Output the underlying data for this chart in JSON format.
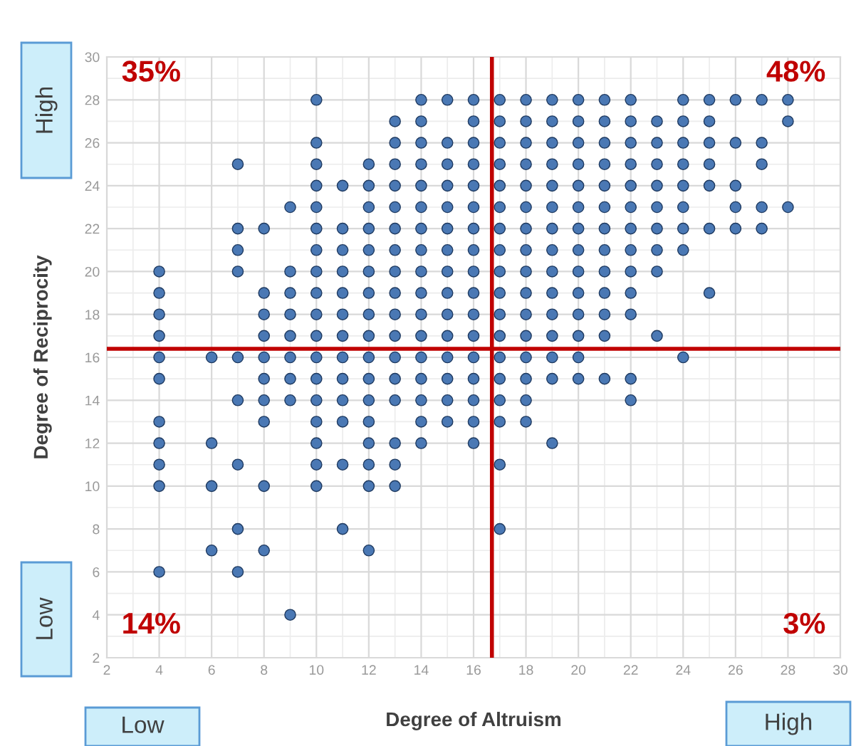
{
  "chart_data": {
    "type": "scatter",
    "xlabel": "Degree of Altruism",
    "ylabel": "Degree of Reciprocity",
    "x": [
      10,
      14,
      15,
      16,
      17,
      18,
      19,
      20,
      21,
      22,
      24,
      25,
      26,
      27,
      28,
      13,
      14,
      16,
      17,
      18,
      19,
      20,
      21,
      22,
      23,
      24,
      25,
      28,
      10,
      13,
      14,
      15,
      16,
      17,
      18,
      19,
      20,
      21,
      22,
      23,
      24,
      25,
      26,
      27,
      7,
      10,
      12,
      13,
      14,
      15,
      16,
      17,
      18,
      19,
      20,
      21,
      22,
      23,
      24,
      25,
      27,
      10,
      11,
      12,
      13,
      14,
      15,
      16,
      17,
      18,
      19,
      20,
      21,
      22,
      23,
      24,
      25,
      26,
      9,
      10,
      12,
      13,
      14,
      15,
      16,
      17,
      18,
      19,
      20,
      21,
      22,
      23,
      24,
      26,
      27,
      28,
      7,
      8,
      10,
      11,
      12,
      13,
      14,
      15,
      16,
      17,
      18,
      19,
      20,
      21,
      22,
      23,
      24,
      25,
      26,
      27,
      7,
      10,
      11,
      12,
      13,
      14,
      15,
      16,
      17,
      18,
      19,
      20,
      21,
      22,
      23,
      24,
      4,
      7,
      9,
      10,
      11,
      12,
      13,
      14,
      15,
      16,
      17,
      18,
      19,
      20,
      21,
      22,
      23,
      4,
      8,
      9,
      10,
      11,
      12,
      13,
      14,
      15,
      16,
      17,
      18,
      19,
      20,
      21,
      22,
      25,
      4,
      8,
      9,
      10,
      11,
      12,
      13,
      14,
      15,
      16,
      17,
      18,
      19,
      20,
      21,
      22,
      4,
      8,
      9,
      10,
      11,
      12,
      13,
      14,
      15,
      16,
      17,
      18,
      19,
      20,
      21,
      23,
      4,
      6,
      7,
      8,
      9,
      10,
      11,
      12,
      13,
      14,
      15,
      16,
      17,
      18,
      19,
      20,
      24,
      4,
      8,
      9,
      10,
      11,
      12,
      13,
      14,
      15,
      16,
      17,
      18,
      19,
      20,
      21,
      22,
      7,
      8,
      9,
      10,
      11,
      12,
      13,
      14,
      15,
      16,
      17,
      18,
      22,
      4,
      8,
      10,
      11,
      12,
      14,
      15,
      16,
      17,
      18,
      4,
      6,
      10,
      12,
      13,
      14,
      16,
      19,
      4,
      7,
      10,
      11,
      12,
      13,
      17,
      4,
      6,
      8,
      10,
      12,
      13,
      7,
      11,
      17,
      6,
      8,
      12,
      4,
      7,
      9
    ],
    "values": [
      28,
      28,
      28,
      28,
      28,
      28,
      28,
      28,
      28,
      28,
      28,
      28,
      28,
      28,
      28,
      27,
      27,
      27,
      27,
      27,
      27,
      27,
      27,
      27,
      27,
      27,
      27,
      27,
      26,
      26,
      26,
      26,
      26,
      26,
      26,
      26,
      26,
      26,
      26,
      26,
      26,
      26,
      26,
      26,
      25,
      25,
      25,
      25,
      25,
      25,
      25,
      25,
      25,
      25,
      25,
      25,
      25,
      25,
      25,
      25,
      25,
      24,
      24,
      24,
      24,
      24,
      24,
      24,
      24,
      24,
      24,
      24,
      24,
      24,
      24,
      24,
      24,
      24,
      23,
      23,
      23,
      23,
      23,
      23,
      23,
      23,
      23,
      23,
      23,
      23,
      23,
      23,
      23,
      23,
      23,
      23,
      22,
      22,
      22,
      22,
      22,
      22,
      22,
      22,
      22,
      22,
      22,
      22,
      22,
      22,
      22,
      22,
      22,
      22,
      22,
      22,
      21,
      21,
      21,
      21,
      21,
      21,
      21,
      21,
      21,
      21,
      21,
      21,
      21,
      21,
      21,
      21,
      20,
      20,
      20,
      20,
      20,
      20,
      20,
      20,
      20,
      20,
      20,
      20,
      20,
      20,
      20,
      20,
      20,
      19,
      19,
      19,
      19,
      19,
      19,
      19,
      19,
      19,
      19,
      19,
      19,
      19,
      19,
      19,
      19,
      19,
      18,
      18,
      18,
      18,
      18,
      18,
      18,
      18,
      18,
      18,
      18,
      18,
      18,
      18,
      18,
      18,
      17,
      17,
      17,
      17,
      17,
      17,
      17,
      17,
      17,
      17,
      17,
      17,
      17,
      17,
      17,
      17,
      16,
      16,
      16,
      16,
      16,
      16,
      16,
      16,
      16,
      16,
      16,
      16,
      16,
      16,
      16,
      16,
      16,
      15,
      15,
      15,
      15,
      15,
      15,
      15,
      15,
      15,
      15,
      15,
      15,
      15,
      15,
      15,
      15,
      14,
      14,
      14,
      14,
      14,
      14,
      14,
      14,
      14,
      14,
      14,
      14,
      14,
      13,
      13,
      13,
      13,
      13,
      13,
      13,
      13,
      13,
      13,
      12,
      12,
      12,
      12,
      12,
      12,
      12,
      12,
      11,
      11,
      11,
      11,
      11,
      11,
      11,
      10,
      10,
      10,
      10,
      10,
      10,
      8,
      8,
      8,
      7,
      7,
      7,
      6,
      6,
      4
    ],
    "color": "#4a78b4",
    "marker": "circle",
    "xlim": [
      2,
      30
    ],
    "xticks": [
      2,
      4,
      6,
      8,
      10,
      12,
      14,
      16,
      18,
      20,
      22,
      24,
      26,
      28,
      30
    ],
    "ylim": [
      2,
      30
    ],
    "yticks": [
      2,
      4,
      6,
      8,
      10,
      12,
      14,
      16,
      18,
      20,
      22,
      24,
      26,
      28,
      30
    ],
    "grid": true,
    "ref_lines": [
      {
        "axis": "x",
        "value": 16.7,
        "color": "#c00000"
      },
      {
        "axis": "y",
        "value": 16.4,
        "color": "#c00000"
      }
    ],
    "annotations": [
      "35%",
      "48%",
      "14%",
      "3%",
      "High",
      "Low",
      "Low",
      "High"
    ]
  }
}
